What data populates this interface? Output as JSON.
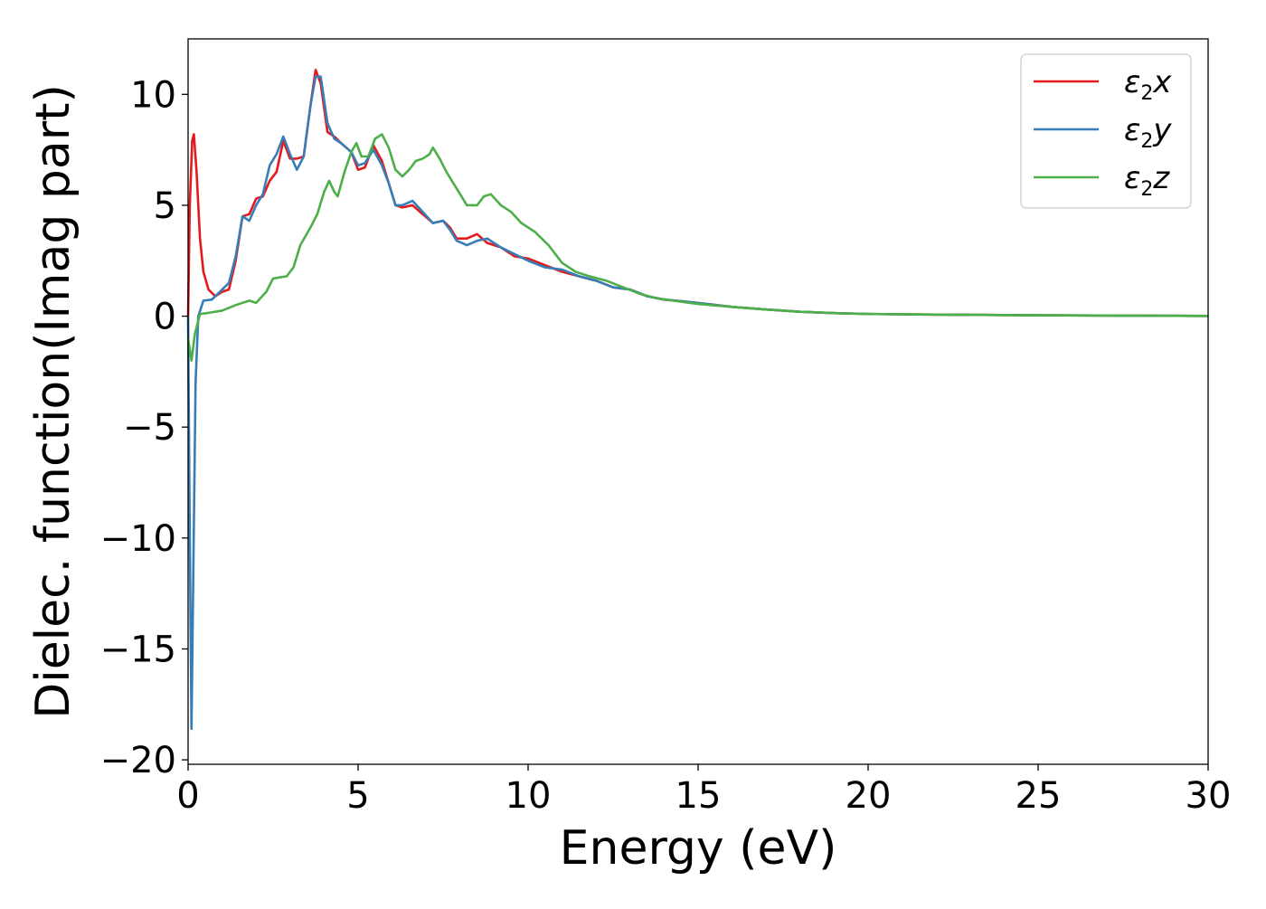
{
  "chart_data": {
    "type": "line",
    "title": "",
    "xlabel": "Energy (eV)",
    "ylabel": "Dielec. function(Imag part)",
    "xlim": [
      0,
      30
    ],
    "ylim": [
      -20.2,
      12.5
    ],
    "xticks": [
      0,
      5,
      10,
      15,
      20,
      25,
      30
    ],
    "xtick_labels": [
      "0",
      "5",
      "10",
      "15",
      "20",
      "25",
      "30"
    ],
    "yticks": [
      -20,
      -15,
      -10,
      -5,
      0,
      5,
      10
    ],
    "ytick_labels": [
      "−20",
      "−15",
      "−10",
      "−5",
      "0",
      "5",
      "10"
    ],
    "grid": false,
    "legend_position": "top-right",
    "series": [
      {
        "name": "ε2x",
        "legend_main": "ε",
        "legend_sub": "2",
        "legend_suffix": "x",
        "color": "#e41a1c",
        "points": [
          [
            0.0,
            0.0
          ],
          [
            0.05,
            5.0
          ],
          [
            0.12,
            7.9
          ],
          [
            0.17,
            8.2
          ],
          [
            0.25,
            6.5
          ],
          [
            0.35,
            3.5
          ],
          [
            0.45,
            2.0
          ],
          [
            0.6,
            1.2
          ],
          [
            0.8,
            0.9
          ],
          [
            1.0,
            1.1
          ],
          [
            1.2,
            1.2
          ],
          [
            1.4,
            2.5
          ],
          [
            1.6,
            4.5
          ],
          [
            1.8,
            4.6
          ],
          [
            2.0,
            5.3
          ],
          [
            2.2,
            5.4
          ],
          [
            2.4,
            6.1
          ],
          [
            2.6,
            6.5
          ],
          [
            2.8,
            7.9
          ],
          [
            3.0,
            7.1
          ],
          [
            3.2,
            7.1
          ],
          [
            3.4,
            7.2
          ],
          [
            3.6,
            9.5
          ],
          [
            3.75,
            11.1
          ],
          [
            3.9,
            10.5
          ],
          [
            4.1,
            8.3
          ],
          [
            4.3,
            8.1
          ],
          [
            4.5,
            7.8
          ],
          [
            4.8,
            7.4
          ],
          [
            5.0,
            6.6
          ],
          [
            5.2,
            6.7
          ],
          [
            5.45,
            7.7
          ],
          [
            5.7,
            7.0
          ],
          [
            5.9,
            6.0
          ],
          [
            6.1,
            5.0
          ],
          [
            6.3,
            4.9
          ],
          [
            6.6,
            5.0
          ],
          [
            6.9,
            4.6
          ],
          [
            7.2,
            4.2
          ],
          [
            7.5,
            4.3
          ],
          [
            7.7,
            4.0
          ],
          [
            7.9,
            3.5
          ],
          [
            8.2,
            3.5
          ],
          [
            8.5,
            3.7
          ],
          [
            8.8,
            3.3
          ],
          [
            9.2,
            3.1
          ],
          [
            9.6,
            2.7
          ],
          [
            10.0,
            2.6
          ],
          [
            10.5,
            2.3
          ],
          [
            11.0,
            2.0
          ],
          [
            11.5,
            1.8
          ],
          [
            12.0,
            1.6
          ],
          [
            12.5,
            1.3
          ],
          [
            13.0,
            1.2
          ],
          [
            13.5,
            0.9
          ],
          [
            14.0,
            0.75
          ],
          [
            15.0,
            0.6
          ],
          [
            16.0,
            0.42
          ],
          [
            17.0,
            0.3
          ],
          [
            18.0,
            0.2
          ],
          [
            19.0,
            0.14
          ],
          [
            20.0,
            0.1
          ],
          [
            22.0,
            0.07
          ],
          [
            25.0,
            0.04
          ],
          [
            30.0,
            0.01
          ]
        ]
      },
      {
        "name": "ε2y",
        "legend_main": "ε",
        "legend_sub": "2",
        "legend_suffix": "y",
        "color": "#377eb8",
        "points": [
          [
            0.0,
            0.0
          ],
          [
            0.05,
            -10.0
          ],
          [
            0.1,
            -18.6
          ],
          [
            0.15,
            -12.0
          ],
          [
            0.22,
            -3.0
          ],
          [
            0.3,
            0.0
          ],
          [
            0.45,
            0.7
          ],
          [
            0.7,
            0.75
          ],
          [
            1.0,
            1.2
          ],
          [
            1.2,
            1.5
          ],
          [
            1.4,
            2.7
          ],
          [
            1.6,
            4.5
          ],
          [
            1.8,
            4.3
          ],
          [
            2.0,
            5.0
          ],
          [
            2.2,
            5.5
          ],
          [
            2.4,
            6.8
          ],
          [
            2.6,
            7.3
          ],
          [
            2.8,
            8.1
          ],
          [
            3.0,
            7.3
          ],
          [
            3.2,
            6.6
          ],
          [
            3.4,
            7.2
          ],
          [
            3.6,
            9.5
          ],
          [
            3.75,
            10.8
          ],
          [
            3.9,
            10.8
          ],
          [
            4.1,
            8.7
          ],
          [
            4.3,
            8.0
          ],
          [
            4.5,
            7.8
          ],
          [
            4.8,
            7.4
          ],
          [
            5.0,
            6.8
          ],
          [
            5.2,
            6.9
          ],
          [
            5.45,
            7.5
          ],
          [
            5.7,
            6.8
          ],
          [
            5.9,
            6.0
          ],
          [
            6.1,
            5.0
          ],
          [
            6.3,
            5.0
          ],
          [
            6.6,
            5.2
          ],
          [
            6.9,
            4.7
          ],
          [
            7.2,
            4.2
          ],
          [
            7.5,
            4.3
          ],
          [
            7.7,
            3.9
          ],
          [
            7.9,
            3.4
          ],
          [
            8.2,
            3.2
          ],
          [
            8.5,
            3.4
          ],
          [
            8.8,
            3.5
          ],
          [
            9.2,
            3.1
          ],
          [
            9.6,
            2.8
          ],
          [
            10.0,
            2.5
          ],
          [
            10.5,
            2.2
          ],
          [
            11.0,
            2.1
          ],
          [
            11.5,
            1.8
          ],
          [
            12.0,
            1.6
          ],
          [
            12.5,
            1.3
          ],
          [
            13.0,
            1.2
          ],
          [
            13.5,
            0.9
          ],
          [
            14.0,
            0.75
          ],
          [
            15.0,
            0.6
          ],
          [
            16.0,
            0.42
          ],
          [
            17.0,
            0.3
          ],
          [
            18.0,
            0.2
          ],
          [
            19.0,
            0.14
          ],
          [
            20.0,
            0.1
          ],
          [
            22.0,
            0.07
          ],
          [
            25.0,
            0.04
          ],
          [
            30.0,
            0.01
          ]
        ]
      },
      {
        "name": "ε2z",
        "legend_main": "ε",
        "legend_sub": "2",
        "legend_suffix": "z",
        "color": "#4daf4a",
        "points": [
          [
            0.0,
            -1.0
          ],
          [
            0.1,
            -2.0
          ],
          [
            0.2,
            -0.8
          ],
          [
            0.35,
            0.1
          ],
          [
            0.6,
            0.15
          ],
          [
            1.0,
            0.25
          ],
          [
            1.4,
            0.5
          ],
          [
            1.8,
            0.7
          ],
          [
            2.0,
            0.6
          ],
          [
            2.3,
            1.1
          ],
          [
            2.5,
            1.7
          ],
          [
            2.9,
            1.8
          ],
          [
            3.1,
            2.2
          ],
          [
            3.3,
            3.2
          ],
          [
            3.6,
            4.0
          ],
          [
            3.8,
            4.6
          ],
          [
            4.0,
            5.6
          ],
          [
            4.15,
            6.1
          ],
          [
            4.3,
            5.6
          ],
          [
            4.4,
            5.4
          ],
          [
            4.6,
            6.5
          ],
          [
            4.8,
            7.4
          ],
          [
            4.95,
            7.8
          ],
          [
            5.1,
            7.2
          ],
          [
            5.3,
            7.2
          ],
          [
            5.5,
            8.0
          ],
          [
            5.7,
            8.2
          ],
          [
            5.9,
            7.6
          ],
          [
            6.1,
            6.6
          ],
          [
            6.3,
            6.3
          ],
          [
            6.5,
            6.6
          ],
          [
            6.7,
            7.0
          ],
          [
            6.9,
            7.1
          ],
          [
            7.1,
            7.3
          ],
          [
            7.2,
            7.6
          ],
          [
            7.4,
            7.1
          ],
          [
            7.6,
            6.5
          ],
          [
            7.8,
            6.0
          ],
          [
            8.0,
            5.5
          ],
          [
            8.2,
            5.0
          ],
          [
            8.5,
            5.0
          ],
          [
            8.7,
            5.4
          ],
          [
            8.9,
            5.5
          ],
          [
            9.2,
            5.0
          ],
          [
            9.5,
            4.7
          ],
          [
            9.8,
            4.2
          ],
          [
            10.2,
            3.8
          ],
          [
            10.6,
            3.2
          ],
          [
            11.0,
            2.4
          ],
          [
            11.4,
            2.0
          ],
          [
            11.8,
            1.8
          ],
          [
            12.3,
            1.6
          ],
          [
            12.8,
            1.3
          ],
          [
            13.3,
            1.0
          ],
          [
            13.8,
            0.8
          ],
          [
            14.5,
            0.65
          ],
          [
            15.0,
            0.55
          ],
          [
            16.0,
            0.42
          ],
          [
            17.0,
            0.3
          ],
          [
            18.0,
            0.2
          ],
          [
            19.0,
            0.14
          ],
          [
            20.0,
            0.1
          ],
          [
            22.0,
            0.07
          ],
          [
            25.0,
            0.04
          ],
          [
            30.0,
            0.01
          ]
        ]
      }
    ]
  }
}
